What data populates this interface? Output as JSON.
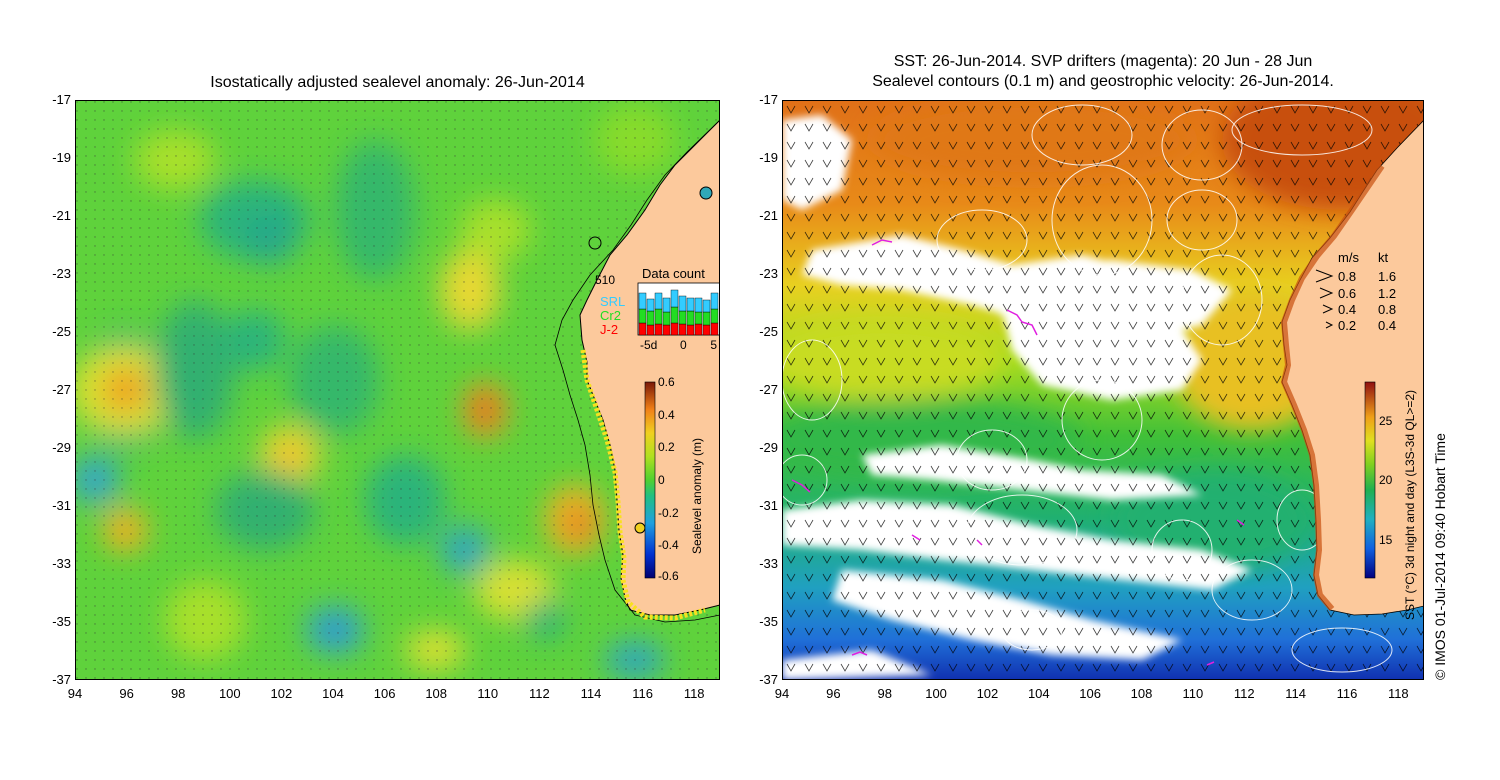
{
  "left_panel": {
    "title": "Isostatically adjusted sealevel anomaly: 26-Jun-2014",
    "colorbar": {
      "label": "Sealevel anomaly (m)",
      "ticks": [
        "0.6",
        "0.4",
        "0.2",
        "0",
        "-0.2",
        "-0.4",
        "-0.6"
      ]
    },
    "data_count_inset": {
      "title": "Data count",
      "ymax_label": "510",
      "xticks": [
        "-5d",
        "0",
        "5"
      ],
      "series": [
        {
          "name": "SRL",
          "color": "#33ccff"
        },
        {
          "name": "Cr2",
          "color": "#22dd22"
        },
        {
          "name": "J-2",
          "color": "#ff0000"
        }
      ]
    }
  },
  "right_panel": {
    "title_line1": "SST: 26-Jun-2014. SVP drifters (magenta): 20 Jun - 28 Jun",
    "title_line2": "Sealevel contours (0.1 m) and geostrophic velocity: 26-Jun-2014.",
    "colorbar": {
      "label": "SST (°C) 3d night and day (L3S-3d QL>=2)",
      "ticks": [
        "25",
        "20",
        "15"
      ]
    },
    "velocity_legend": {
      "header_ms": "m/s",
      "header_kt": "kt",
      "rows": [
        {
          "ms": "0.8",
          "kt": "1.6"
        },
        {
          "ms": "0.6",
          "kt": "1.2"
        },
        {
          "ms": "0.4",
          "kt": "0.8"
        },
        {
          "ms": "0.2",
          "kt": "0.4"
        }
      ]
    }
  },
  "axes": {
    "y_ticks": [
      "-17",
      "-19",
      "-21",
      "-23",
      "-25",
      "-27",
      "-29",
      "-31",
      "-33",
      "-35",
      "-37"
    ],
    "x_ticks": [
      "94",
      "96",
      "98",
      "100",
      "102",
      "104",
      "106",
      "108",
      "110",
      "112",
      "114",
      "116",
      "118"
    ]
  },
  "copyright": "© IMOS 01-Jul-2014 09:40 Hobart Time",
  "colors": {
    "land": "#fcc99c",
    "ocean_green": "#55d42a",
    "cloud": "#ffffff",
    "drifter": "#e020e0"
  }
}
